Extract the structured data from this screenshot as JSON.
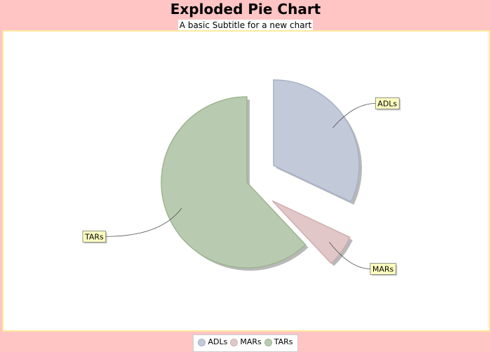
{
  "header": {
    "title": "Exploded Pie Chart",
    "subtitle": "A basic Subtitle for a new chart"
  },
  "colors": {
    "page_background": "#ffc4c4",
    "plot_background": "#ffffff",
    "plot_border": "#ffe8a0",
    "label_fill": "#ffffc0"
  },
  "chart_data": {
    "type": "pie",
    "title": "Exploded Pie Chart",
    "subtitle": "A basic Subtitle for a new chart",
    "exploded": true,
    "legend_position": "bottom",
    "series": [
      {
        "name": "ADLs",
        "value": 32,
        "exploded": true,
        "color": "#c2cad9",
        "edge": "#a7b2c8"
      },
      {
        "name": "MARs",
        "value": 6,
        "exploded": true,
        "color": "#e2c7c8",
        "edge": "#d0aeb0"
      },
      {
        "name": "TARs",
        "value": 62,
        "exploded": false,
        "color": "#b8cbb0",
        "edge": "#9db58f"
      }
    ]
  },
  "legend": {
    "items": [
      {
        "label": "ADLs",
        "color": "#c2cad9"
      },
      {
        "label": "MARs",
        "color": "#e2c7c8"
      },
      {
        "label": "TARs",
        "color": "#b8cbb0"
      }
    ]
  }
}
